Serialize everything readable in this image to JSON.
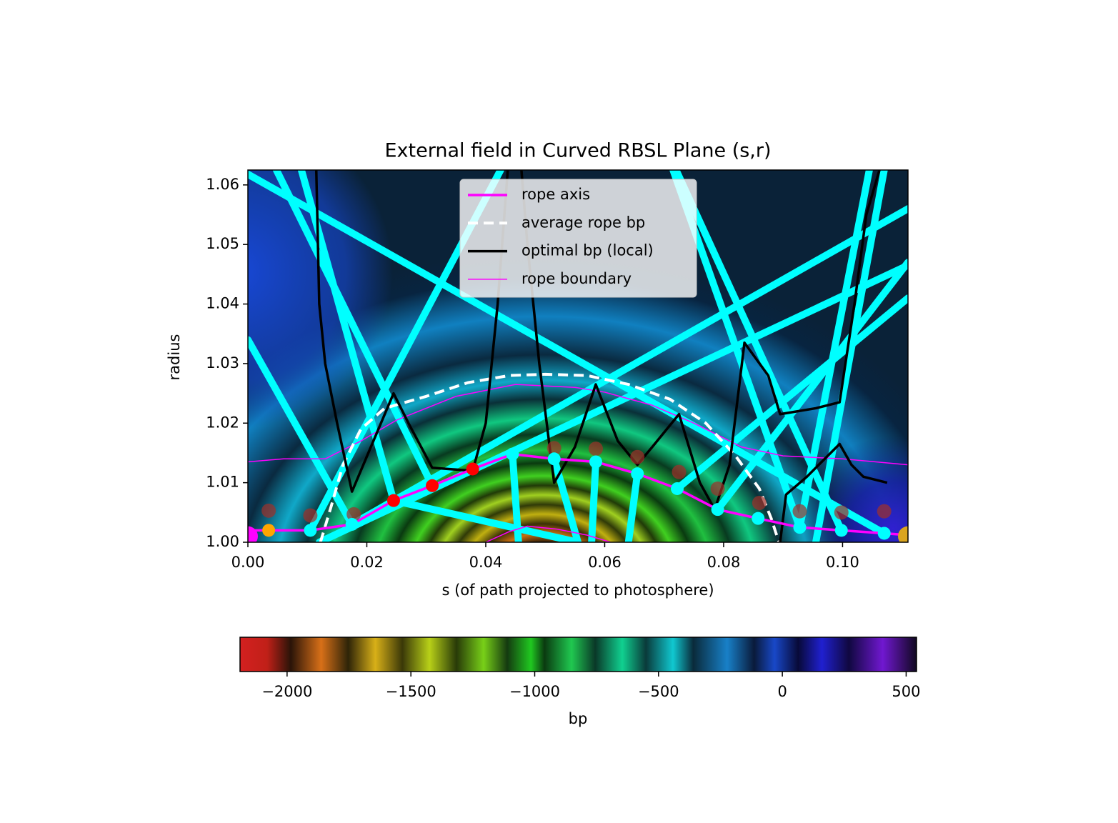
{
  "chart_data": {
    "type": "line",
    "title": "External field in Curved RBSL Plane (s,r)",
    "x_label": "s (of path projected to photosphere)",
    "y_label": "radius",
    "xlim": [
      0,
      0.111
    ],
    "ylim": [
      1.0,
      1.0625
    ],
    "xticks": [
      {
        "value": 0,
        "label": "0.00"
      },
      0.02,
      0.04,
      0.06,
      0.08,
      {
        "value": 0.1,
        "label": "0.10"
      }
    ],
    "yticks": [
      {
        "value": 1.0,
        "label": "1.00"
      },
      {
        "value": 1.01,
        "label": "1.01"
      },
      {
        "value": 1.02,
        "label": "1.02"
      },
      {
        "value": 1.03,
        "label": "1.03"
      },
      {
        "value": 1.04,
        "label": "1.04"
      },
      {
        "value": 1.05,
        "label": "1.05"
      },
      {
        "value": 1.06,
        "label": "1.06"
      }
    ],
    "legend": "upper center",
    "series": [
      {
        "name": "rope axis",
        "color": "#ff00ff",
        "width": 3.5,
        "dash": "",
        "x": [
          0,
          0.0035,
          0.0105,
          0.0175,
          0.0245,
          0.031,
          0.0378,
          0.0445,
          0.0515,
          0.0585,
          0.0655,
          0.0722,
          0.079,
          0.0858,
          0.0928,
          0.0998,
          0.107,
          0.111
        ],
        "values": [
          1.002,
          1.002,
          1.002,
          1.003,
          1.007,
          1.0095,
          1.0123,
          1.0148,
          1.014,
          1.0135,
          1.0115,
          1.009,
          1.0055,
          1.004,
          1.0025,
          1.002,
          1.0015,
          1.0012
        ]
      },
      {
        "name": "average rope bp",
        "color": "#ffffff",
        "width": 4,
        "dash": "14 8",
        "x": [
          0.0122,
          0.014,
          0.016,
          0.019,
          0.023,
          0.03,
          0.037,
          0.044,
          0.05,
          0.057,
          0.064,
          0.071,
          0.077,
          0.082,
          0.086,
          0.088,
          0.0893
        ],
        "values": [
          1.0,
          1.006,
          1.013,
          1.019,
          1.0225,
          1.0245,
          1.0268,
          1.028,
          1.0282,
          1.028,
          1.0265,
          1.024,
          1.02,
          1.0145,
          1.009,
          1.004,
          1.0
        ]
      },
      {
        "name": "optimal bp (local)",
        "color": "#000000",
        "width": 3.5,
        "dash": "",
        "x": [
          0.0115,
          0.012,
          0.013,
          0.015,
          0.0175,
          0.0245,
          0.027,
          0.031,
          0.0378,
          0.04,
          0.042,
          0.0437,
          0.044,
          0.046,
          0.047,
          0.049,
          0.0515,
          0.055,
          0.0585,
          0.0622,
          0.0655,
          0.068,
          0.0725,
          0.076,
          0.0785,
          0.081,
          0.0835,
          0.0875,
          0.0895,
          0.0955,
          0.0995,
          0.102,
          0.104,
          0.1062,
          0.0895,
          0.0895,
          0.0905,
          0.094,
          0.0995,
          0.1015,
          0.1035,
          0.1075
        ],
        "values": [
          1.0625,
          1.04,
          1.03,
          1.02,
          1.0085,
          1.025,
          1.02,
          1.0125,
          1.012,
          1.02,
          1.04,
          1.0625,
          null,
          1.0625,
          1.05,
          1.03,
          1.01,
          1.016,
          1.0265,
          1.017,
          1.013,
          1.016,
          1.0215,
          1.01,
          1.0055,
          1.013,
          1.0335,
          1.028,
          1.0215,
          1.0225,
          1.0235,
          1.04,
          1.055,
          1.0625,
          null,
          1.0,
          1.008,
          1.011,
          1.0165,
          1.013,
          1.011,
          1.01
        ]
      },
      {
        "name": "rope boundary",
        "color": "#ff00ff",
        "width": 1.5,
        "dash": "",
        "x": [
          0,
          0.006,
          0.013,
          0.019,
          0.025,
          0.035,
          0.045,
          0.055,
          0.06,
          0.068,
          0.075,
          0.083,
          0.09,
          0.1,
          0.111,
          0.04,
          0.04,
          0.044,
          0.047,
          0.052,
          0.057,
          0.061
        ],
        "values": [
          1.0135,
          1.014,
          1.014,
          1.017,
          1.0205,
          1.0245,
          1.0265,
          1.026,
          1.0252,
          1.023,
          1.02,
          1.016,
          1.0145,
          1.014,
          1.013,
          null,
          1.0,
          1.0018,
          1.0027,
          1.0022,
          1.0012,
          1.0
        ]
      }
    ],
    "field_lines": {
      "color": "#00ffff",
      "segments": [
        [
          0,
          1.0618,
          0.107,
          1.0015
        ],
        [
          0,
          1.034,
          0.0175,
          1.003
        ],
        [
          0.0048,
          1.0625,
          0.031,
          1.0095
        ],
        [
          0.0105,
          1.002,
          0.0425,
          1.0625
        ],
        [
          0.0175,
          1.003,
          0.111,
          1.056
        ],
        [
          0.012,
          1.0,
          0.111,
          1.0465
        ],
        [
          0.0445,
          1.0148,
          0.0455,
          1.0
        ],
        [
          0.0515,
          1.014,
          0.0555,
          1.0
        ],
        [
          0.0585,
          1.0135,
          0.0578,
          1.0
        ],
        [
          0.0655,
          1.0115,
          0.064,
          1.0
        ],
        [
          0.0722,
          1.009,
          0.111,
          1.041
        ],
        [
          0.079,
          1.0055,
          0.111,
          1.047
        ],
        [
          0.072,
          1.0625,
          0.0998,
          1.002
        ],
        [
          0.1045,
          1.0625,
          0.0928,
          1.0025
        ],
        [
          0.107,
          1.0625,
          0.0955,
          1.0
        ],
        [
          0.0245,
          1.007,
          0.0555,
          1.0
        ],
        [
          0.0928,
          1.0025,
          0.0715,
          1.0625
        ],
        [
          0.009,
          1.0625,
          0.0245,
          1.007
        ]
      ]
    },
    "markers": [
      {
        "color": "#a0302a",
        "alpha": 0.7,
        "size": 10,
        "x": [
          0.0035,
          0.0105,
          0.0178,
          0.0515,
          0.0585,
          0.0655,
          0.0725,
          0.079,
          0.086,
          0.0928,
          0.0998,
          0.107
        ],
        "values": [
          1.0053,
          1.0045,
          1.0047,
          1.0158,
          1.0157,
          1.0143,
          1.0118,
          1.009,
          1.0066,
          1.0052,
          1.005,
          1.0052
        ]
      },
      {
        "color": "#00ffff",
        "alpha": 1,
        "size": 9,
        "x": [
          0.0105,
          0.0175,
          0.0445,
          0.0515,
          0.0585,
          0.0655,
          0.0722,
          0.079,
          0.0858,
          0.0928,
          0.0998,
          0.107
        ],
        "values": [
          1.002,
          1.003,
          1.0148,
          1.014,
          1.0135,
          1.0115,
          1.009,
          1.0055,
          1.004,
          1.0025,
          1.002,
          1.0015
        ]
      },
      {
        "color": "#ff0000",
        "alpha": 1,
        "size": 9,
        "x": [
          0.0245,
          0.031,
          0.0378
        ],
        "values": [
          1.007,
          1.0095,
          1.0123
        ]
      },
      {
        "color": "#ffa500",
        "alpha": 1,
        "size": 9,
        "x": [
          0.0035
        ],
        "values": [
          1.002
        ]
      },
      {
        "color": "#ff00ff",
        "alpha": 1,
        "size": 14,
        "x": [
          0
        ],
        "values": [
          1.001
        ]
      },
      {
        "color": "#daa520",
        "alpha": 1,
        "size": 14,
        "x": [
          0.111
        ],
        "values": [
          1.001
        ]
      }
    ],
    "colorbar": {
      "label": "bp",
      "lim": [
        -2190,
        542
      ],
      "ticks": [
        {
          "value": -2000,
          "label": "−2000"
        },
        {
          "value": -1500,
          "label": "−1500"
        },
        {
          "value": -1000,
          "label": "−1000"
        },
        {
          "value": -500,
          "label": "−500"
        },
        0,
        500
      ]
    }
  }
}
